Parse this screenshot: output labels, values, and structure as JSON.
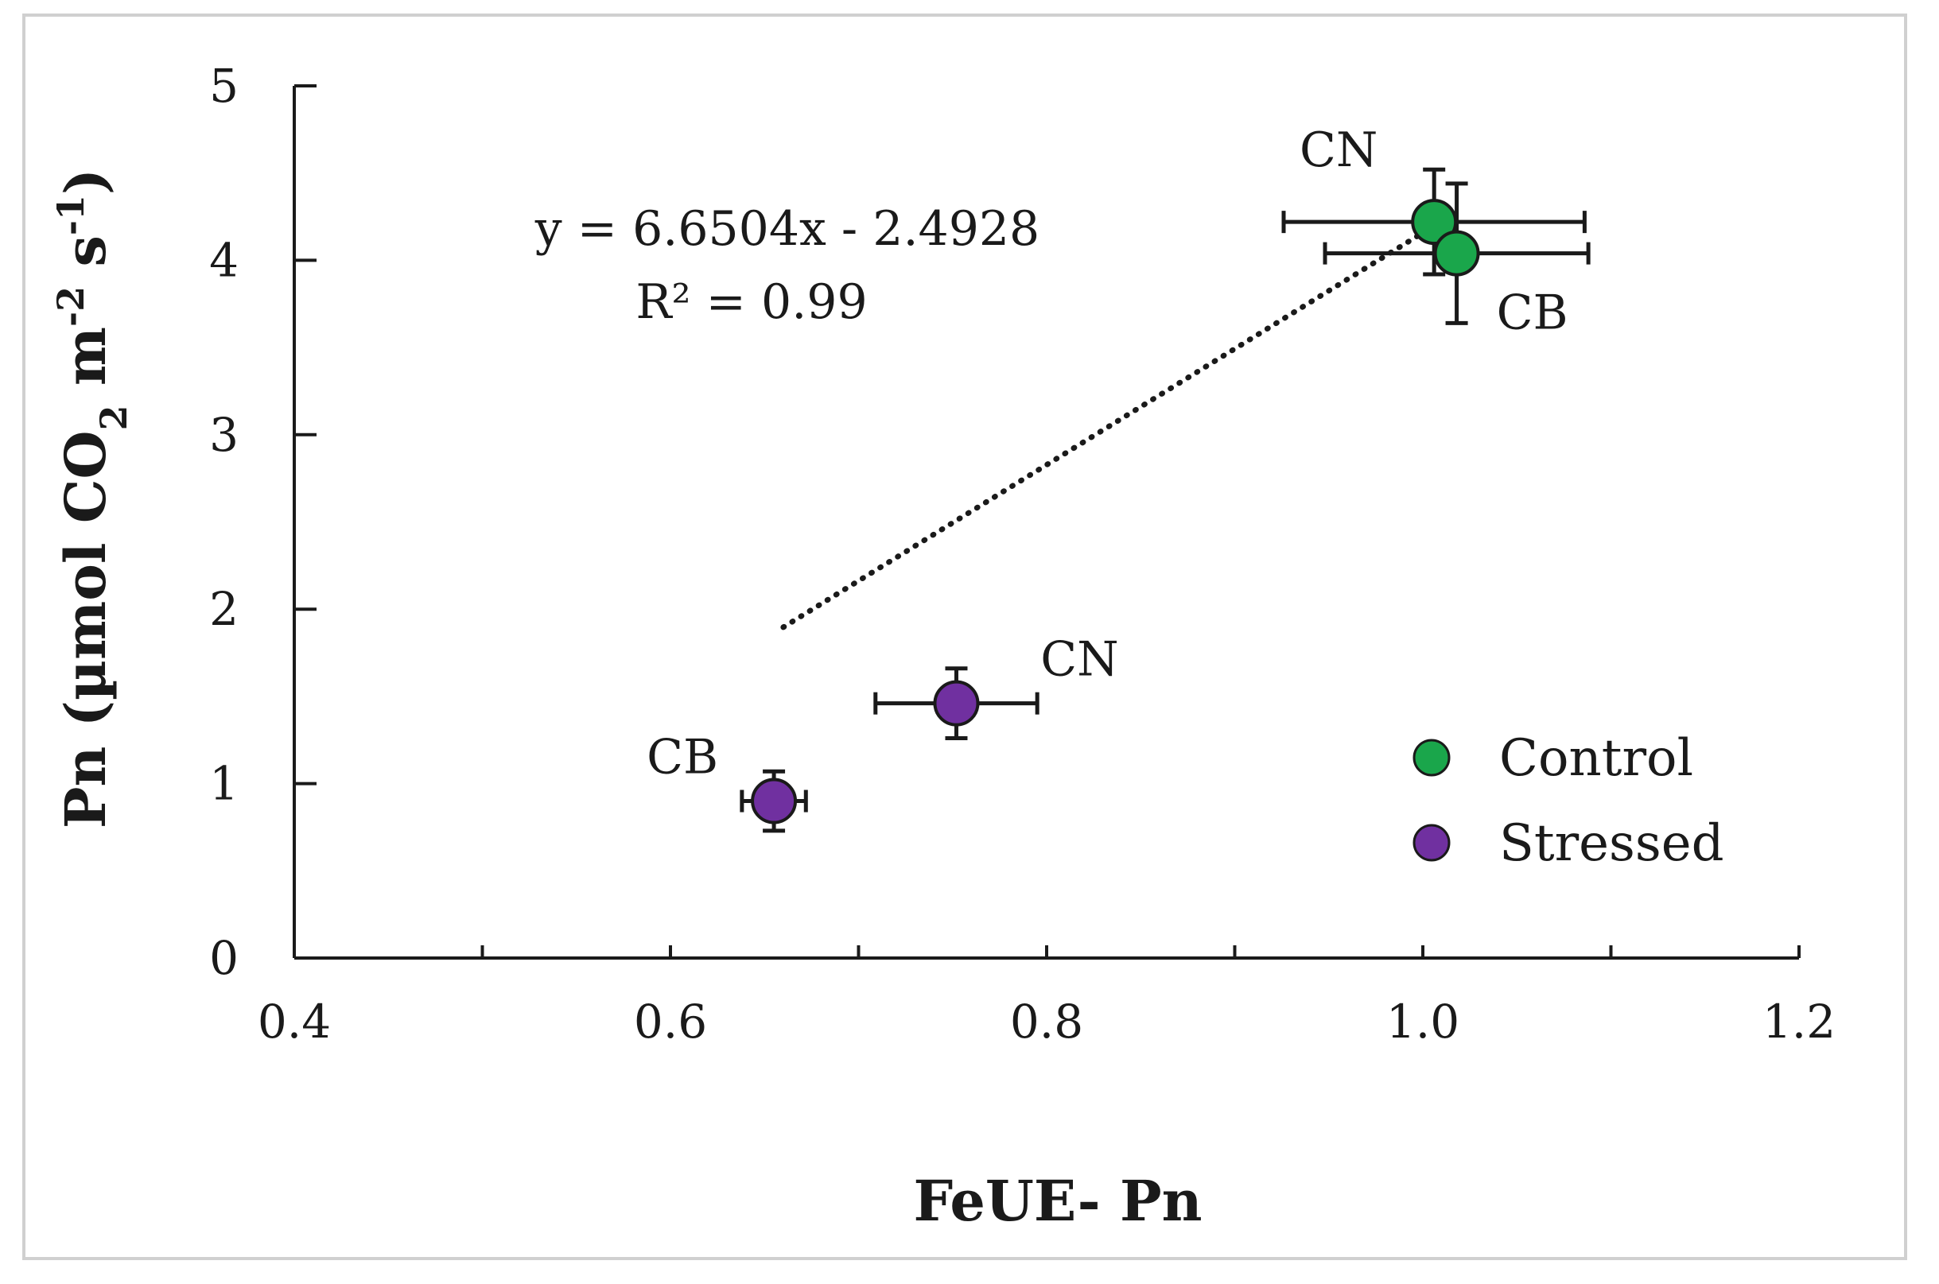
{
  "chart_data": {
    "type": "scatter",
    "xlabel": "FeUE- Pn",
    "ylabel": {
      "prefix": "Pn (µmol CO",
      "co2_sub": "2",
      "m": " m",
      "m_sup": "-2",
      "s": " s",
      "s_sup": "-1",
      "suffix": ")"
    },
    "xlim": [
      0.4,
      1.2
    ],
    "ylim": [
      0,
      5
    ],
    "x_ticks": [
      {
        "value": 0.4,
        "label": "0.4"
      },
      {
        "value": 0.6,
        "label": "0.6"
      },
      {
        "value": 0.8,
        "label": "0.8"
      },
      {
        "value": 1.0,
        "label": "1.0"
      },
      {
        "value": 1.2,
        "label": "1.2"
      }
    ],
    "x_minor_ticks": [
      0.5,
      0.7,
      0.9,
      1.1
    ],
    "y_ticks": [
      {
        "value": 0,
        "label": "0"
      },
      {
        "value": 1,
        "label": "1"
      },
      {
        "value": 2,
        "label": "2"
      },
      {
        "value": 3,
        "label": "3"
      },
      {
        "value": 4,
        "label": "4"
      },
      {
        "value": 5,
        "label": "5"
      }
    ],
    "series": [
      {
        "name": "Control",
        "color": "#1aa64b",
        "points": [
          {
            "label": "CN",
            "x": 1.006,
            "y": 4.22,
            "x_err": 0.08,
            "y_err": 0.3
          },
          {
            "label": "CB",
            "x": 1.018,
            "y": 4.04,
            "x_err": 0.07,
            "y_err": 0.4
          }
        ]
      },
      {
        "name": "Stressed",
        "color": "#7030a0",
        "points": [
          {
            "label": "CN",
            "x": 0.752,
            "y": 1.46,
            "x_err": 0.043,
            "y_err": 0.2
          },
          {
            "label": "CB",
            "x": 0.655,
            "y": 0.9,
            "x_err": 0.017,
            "y_err": 0.17
          }
        ]
      }
    ],
    "trendline": {
      "slope": 6.6504,
      "intercept": -2.4928,
      "x_range": [
        0.66,
        1.006
      ],
      "style": "dotted"
    },
    "annotations": {
      "equation": "y = 6.6504x - 2.4928",
      "r2": "R² = 0.99"
    },
    "legend_position": "bottom-right",
    "grid": false
  }
}
